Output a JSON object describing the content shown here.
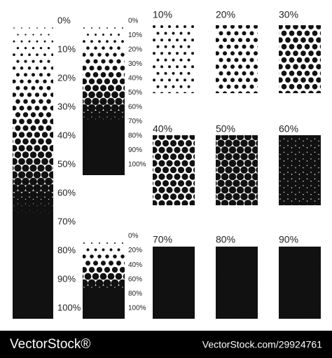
{
  "column_1": {
    "labels": [
      "0%",
      "10%",
      "20%",
      "30%",
      "40%",
      "50%",
      "60%",
      "70%",
      "80%",
      "90%",
      "100%"
    ]
  },
  "column_2_top": {
    "labels": [
      "0%",
      "10%",
      "20%",
      "30%",
      "40%",
      "50%",
      "60%",
      "70%",
      "80%",
      "90%",
      "100%"
    ]
  },
  "column_2_bottom": {
    "labels": [
      "0%",
      "20%",
      "40%",
      "60%",
      "80%",
      "100%"
    ]
  },
  "swatches": [
    {
      "label": "10%"
    },
    {
      "label": "20%"
    },
    {
      "label": "30%"
    },
    {
      "label": "40%"
    },
    {
      "label": "50%"
    },
    {
      "label": "60%"
    },
    {
      "label": "70%"
    },
    {
      "label": "80%"
    },
    {
      "label": "90%"
    }
  ],
  "footer": {
    "brand": "VectorStock®",
    "url": "VectorStock.com/29924761"
  }
}
